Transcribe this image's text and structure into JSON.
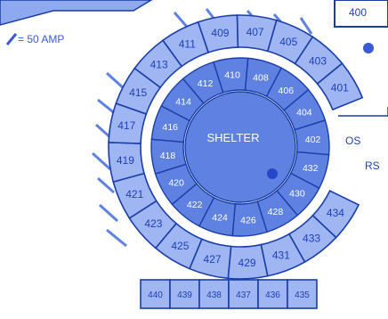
{
  "map": {
    "legend_text": "= 50 AMP",
    "corner_label": "400",
    "center_label": "SHELTER",
    "outer_ring_sites": [
      "427",
      "425",
      "423",
      "421",
      "419",
      "417",
      "415",
      "413",
      "411",
      "409",
      "407",
      "405",
      "403",
      "401"
    ],
    "outer_ring_sites_right": [
      "434",
      "433",
      "431",
      "429"
    ],
    "inner_ring_sites": [
      "424",
      "422",
      "420",
      "418",
      "416",
      "414",
      "412",
      "410",
      "408",
      "406",
      "404",
      "402",
      "432",
      "430",
      "428",
      "426"
    ],
    "side_labels": [
      "OS",
      "RS"
    ],
    "bottom_row_sites": [
      "440",
      "439",
      "438",
      "437",
      "436",
      "435"
    ]
  },
  "colors": {
    "site_fill": "#9fb6f2",
    "inner_fill": "#5f82e2",
    "line": "#1a3ea8",
    "road": "#ffffff",
    "background": "#ffffff"
  }
}
